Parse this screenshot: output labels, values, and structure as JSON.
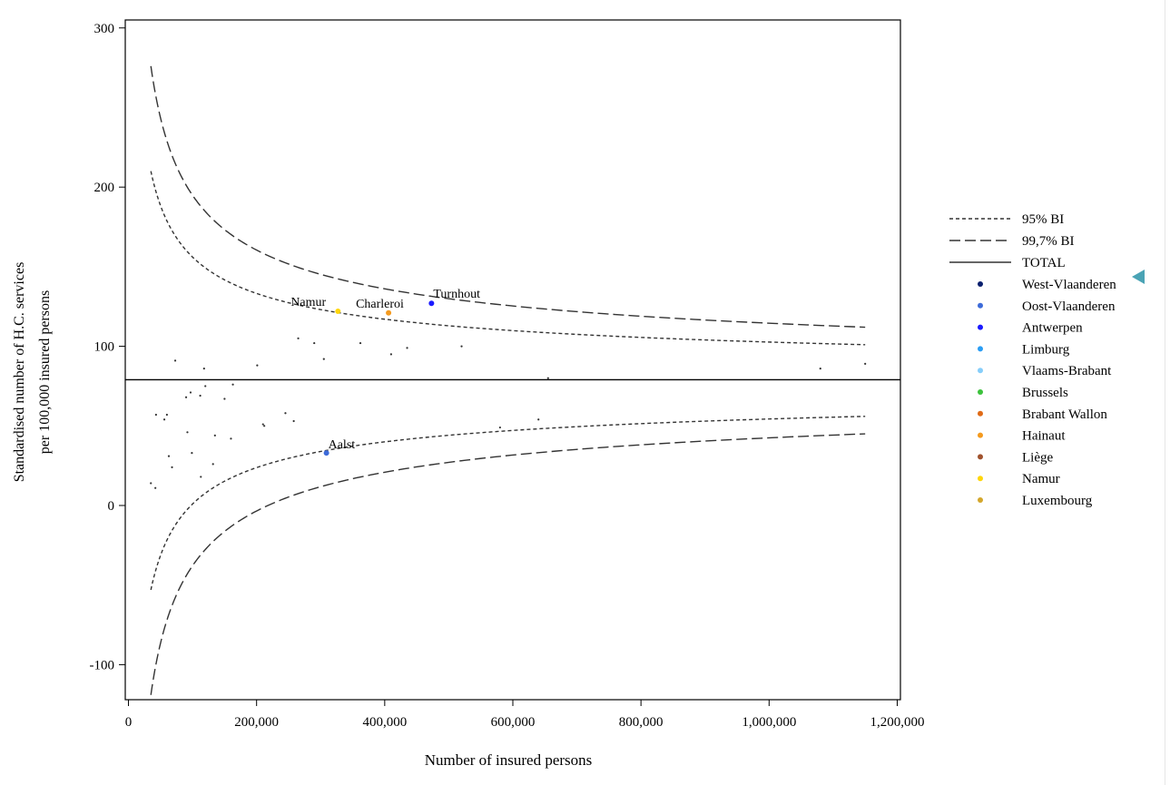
{
  "chart_data": {
    "type": "scatter",
    "title": "",
    "xlabel": "Number of insured persons",
    "ylabel_lines": [
      "Standardised number of H.C. services",
      "per 100,000 insured persons"
    ],
    "xlim": [
      -5000,
      1205000
    ],
    "ylim": [
      -122,
      305
    ],
    "x_ticks": [
      0,
      200000,
      400000,
      600000,
      800000,
      1000000,
      1200000
    ],
    "x_tick_labels": [
      "0",
      "200,000",
      "400,000",
      "600,000",
      "800,000",
      "1,000,000",
      "1,200,000"
    ],
    "y_ticks": [
      -100,
      0,
      100,
      200,
      300
    ],
    "y_tick_labels": [
      "-100",
      "0",
      "100",
      "200",
      "300"
    ],
    "grid": false,
    "total": 79,
    "lines": [
      {
        "name": "95% BI",
        "style": "dotted",
        "color": "#333333",
        "x": [
          35000,
          1150000
        ],
        "upper": [
          210,
          101
        ],
        "lower": [
          -53,
          56
        ]
      },
      {
        "name": "99,7% BI",
        "style": "dashed",
        "color": "#333333",
        "x": [
          35000,
          1150000
        ],
        "upper": [
          276,
          112
        ],
        "lower": [
          -119,
          45
        ]
      },
      {
        "name": "TOTAL",
        "style": "solid",
        "color": "#000000"
      }
    ],
    "legend_lines": [
      {
        "label": "95% BI",
        "dash": "4,3"
      },
      {
        "label": "99,7% BI",
        "dash": "12,5"
      },
      {
        "label": "TOTAL",
        "dash": ""
      }
    ],
    "legend_points": [
      {
        "label": "West-Vlaanderen",
        "color": "#0a1f6e"
      },
      {
        "label": "Oost-Vlaanderen",
        "color": "#3d6bd9"
      },
      {
        "label": "Antwerpen",
        "color": "#1a1aff"
      },
      {
        "label": "Limburg",
        "color": "#2a9df4"
      },
      {
        "label": "Vlaams-Brabant",
        "color": "#87cefa"
      },
      {
        "label": "Brussels",
        "color": "#3cc23c"
      },
      {
        "label": "Brabant Wallon",
        "color": "#e06a16"
      },
      {
        "label": "Hainaut",
        "color": "#f49a1e"
      },
      {
        "label": "Liège",
        "color": "#a0522d"
      },
      {
        "label": "Namur",
        "color": "#ffd60a"
      },
      {
        "label": "Luxembourg",
        "color": "#d4a72c"
      }
    ],
    "highlighted_points": [
      {
        "label": "Namur",
        "x": 327000,
        "y": 122,
        "color": "#ffd60a"
      },
      {
        "label": "Charleroi",
        "x": 406000,
        "y": 121,
        "color": "#f49a1e"
      },
      {
        "label": "Turnhout",
        "x": 473000,
        "y": 127,
        "color": "#1a1aff"
      },
      {
        "label": "Aalst",
        "x": 309000,
        "y": 33,
        "color": "#3d6bd9"
      }
    ],
    "small_points": [
      [
        35000,
        14
      ],
      [
        42000,
        11
      ],
      [
        43000,
        57
      ],
      [
        56000,
        54
      ],
      [
        60000,
        57
      ],
      [
        63000,
        31
      ],
      [
        68000,
        24
      ],
      [
        73000,
        91
      ],
      [
        90000,
        68
      ],
      [
        92000,
        46
      ],
      [
        97000,
        71
      ],
      [
        99000,
        33
      ],
      [
        112000,
        69
      ],
      [
        113000,
        18
      ],
      [
        118000,
        86
      ],
      [
        120000,
        75
      ],
      [
        132000,
        26
      ],
      [
        135000,
        44
      ],
      [
        150000,
        67
      ],
      [
        160000,
        42
      ],
      [
        163000,
        76
      ],
      [
        201000,
        88
      ],
      [
        210000,
        51
      ],
      [
        212000,
        50
      ],
      [
        245000,
        58
      ],
      [
        258000,
        53
      ],
      [
        265000,
        105
      ],
      [
        290000,
        102
      ],
      [
        305000,
        92
      ],
      [
        362000,
        102
      ],
      [
        410000,
        95
      ],
      [
        435000,
        99
      ],
      [
        520000,
        100
      ],
      [
        580000,
        49
      ],
      [
        640000,
        54
      ],
      [
        655000,
        80
      ],
      [
        1080000,
        86
      ],
      [
        1150000,
        89
      ]
    ]
  }
}
